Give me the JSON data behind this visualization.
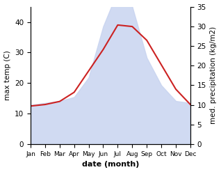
{
  "months": [
    "Jan",
    "Feb",
    "Mar",
    "Apr",
    "May",
    "Jun",
    "Jul",
    "Aug",
    "Sep",
    "Oct",
    "Nov",
    "Dec"
  ],
  "month_indices": [
    0,
    1,
    2,
    3,
    4,
    5,
    6,
    7,
    8,
    9,
    10,
    11
  ],
  "temperature": [
    12.5,
    13.0,
    14.0,
    17.0,
    24.0,
    31.0,
    39.0,
    38.5,
    34.0,
    26.0,
    18.0,
    13.0
  ],
  "precipitation": [
    10.0,
    10.5,
    11.0,
    12.0,
    17.0,
    30.0,
    39.0,
    35.0,
    22.0,
    15.0,
    11.0,
    10.5
  ],
  "temp_color": "#cc2222",
  "precip_fill_color": "#c8d4f0",
  "precip_fill_alpha": 0.85,
  "temp_ylim": [
    0,
    45
  ],
  "precip_ylim": [
    0,
    35
  ],
  "temp_yticks": [
    0,
    10,
    20,
    30,
    40
  ],
  "precip_yticks": [
    0,
    5,
    10,
    15,
    20,
    25,
    30,
    35
  ],
  "xlabel": "date (month)",
  "ylabel_left": "max temp (C)",
  "ylabel_right": "med. precipitation (kg/m2)",
  "bg_color": "#ffffff"
}
